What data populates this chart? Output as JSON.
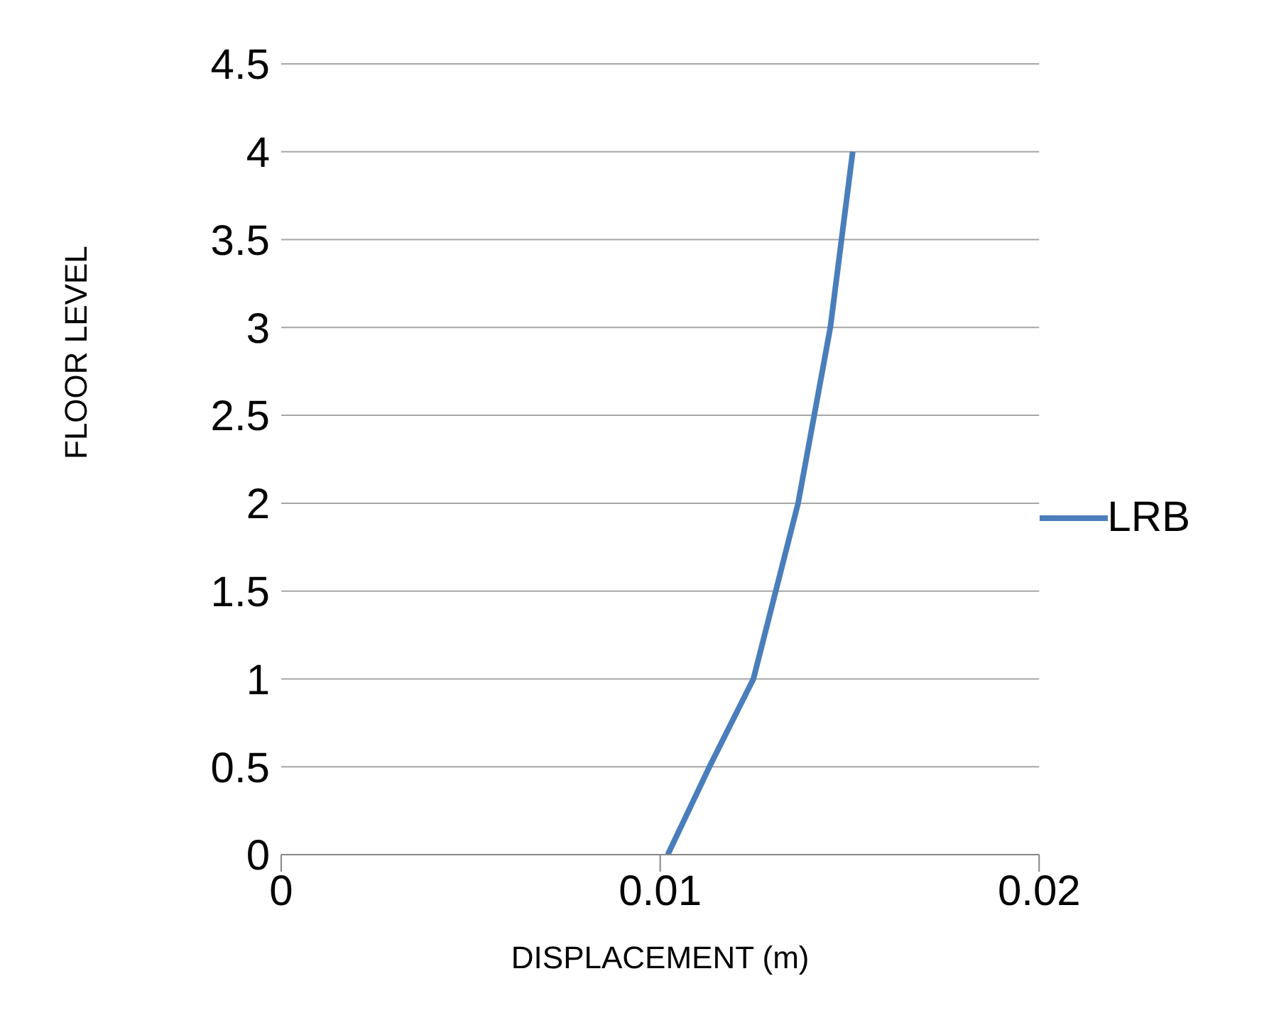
{
  "chart_data": {
    "type": "line",
    "xlabel": "DISPLACEMENT (m)",
    "ylabel": "FLOOR LEVEL",
    "series": [
      {
        "name": "LRB",
        "color": "#4a7ebb",
        "x": [
          0.0102,
          0.0113,
          0.01246,
          0.01364,
          0.01449,
          0.01508
        ],
        "values": [
          0,
          0.5,
          1,
          2,
          3,
          4
        ]
      }
    ],
    "xlim": [
      0,
      0.02
    ],
    "xticks": [
      0,
      0.01,
      0.02
    ],
    "ylim": [
      0,
      4.5
    ],
    "yticks": [
      0,
      0.5,
      1,
      1.5,
      2,
      2.5,
      3,
      3.5,
      4,
      4.5
    ],
    "grid": "y",
    "legend": "right",
    "marker": "none",
    "line_style": "solid"
  }
}
